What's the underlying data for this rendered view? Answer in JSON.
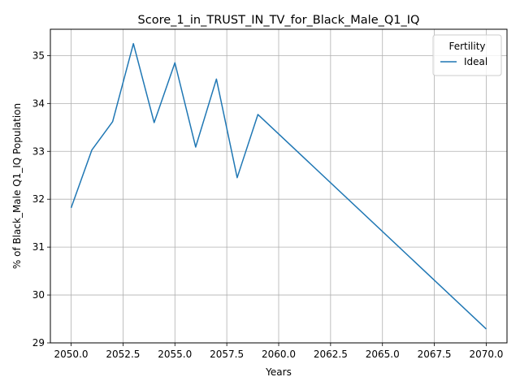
{
  "chart_data": {
    "type": "line",
    "title": "Score_1_in_TRUST_IN_TV_for_Black_Male_Q1_IQ",
    "xlabel": "Years",
    "ylabel": "% of Black_Male Q1_IQ Population",
    "xlim": [
      2049,
      2071
    ],
    "ylim": [
      29,
      35.55
    ],
    "x_ticks": [
      2050,
      2052.5,
      2055,
      2057.5,
      2060,
      2062.5,
      2065,
      2067.5,
      2070
    ],
    "x_tick_labels": [
      "2050.0",
      "2052.5",
      "2055.0",
      "2057.5",
      "2060.0",
      "2062.5",
      "2065.0",
      "2067.5",
      "2070.0"
    ],
    "y_ticks": [
      29,
      30,
      31,
      32,
      33,
      34,
      35
    ],
    "y_tick_labels": [
      "29",
      "30",
      "31",
      "32",
      "33",
      "34",
      "35"
    ],
    "grid": true,
    "legend": {
      "title": "Fertility",
      "placement": "top-right"
    },
    "series": [
      {
        "name": "Ideal",
        "color": "#1f77b4",
        "x": [
          2050,
          2051,
          2052,
          2053,
          2054,
          2055,
          2056,
          2057,
          2058,
          2059,
          2070
        ],
        "y": [
          31.82,
          33.03,
          33.62,
          35.25,
          33.6,
          34.85,
          33.09,
          34.51,
          32.45,
          33.77,
          29.29
        ]
      }
    ]
  }
}
